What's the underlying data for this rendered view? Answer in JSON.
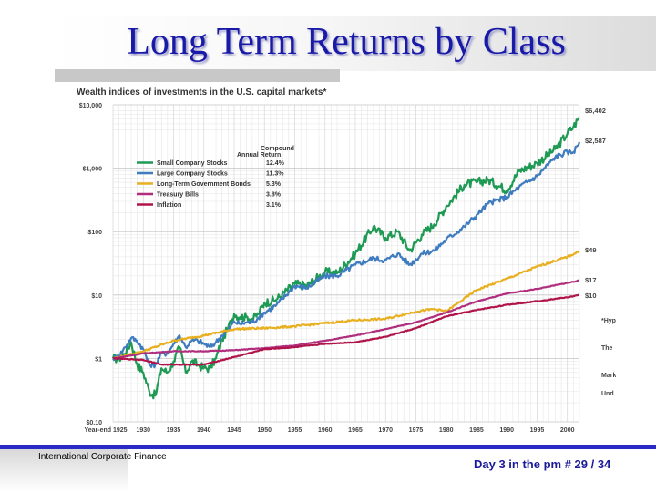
{
  "slide": {
    "title": "Long Term Returns by Class",
    "footer_left": "International Corporate Finance",
    "footer_right": "Day 3 in the pm # 29 / 34"
  },
  "chart_data": {
    "type": "line",
    "title": "Wealth indices of investments in the U.S. capital markets*",
    "y_scale": "log",
    "ylim": [
      0.1,
      10000
    ],
    "xlim": [
      1925,
      2002
    ],
    "y_ticks": [
      {
        "value": 10000,
        "label": "$10,000"
      },
      {
        "value": 1000,
        "label": "$1,000"
      },
      {
        "value": 100,
        "label": "$100"
      },
      {
        "value": 10,
        "label": "$10"
      },
      {
        "value": 1,
        "label": "$1"
      },
      {
        "value": 0.1,
        "label": "$0.10"
      }
    ],
    "x_ticks": [
      {
        "value": 1925,
        "label": "Year-end 1925"
      },
      {
        "value": 1930,
        "label": "1930"
      },
      {
        "value": 1935,
        "label": "1935"
      },
      {
        "value": 1940,
        "label": "1940"
      },
      {
        "value": 1945,
        "label": "1945"
      },
      {
        "value": 1950,
        "label": "1950"
      },
      {
        "value": 1955,
        "label": "1955"
      },
      {
        "value": 1960,
        "label": "1960"
      },
      {
        "value": 1965,
        "label": "1965"
      },
      {
        "value": 1970,
        "label": "1970"
      },
      {
        "value": 1975,
        "label": "1975"
      },
      {
        "value": 1980,
        "label": "1980"
      },
      {
        "value": 1985,
        "label": "1985"
      },
      {
        "value": 1990,
        "label": "1990"
      },
      {
        "value": 1995,
        "label": "1995"
      },
      {
        "value": 2000,
        "label": "2000"
      }
    ],
    "legend_header": [
      "Compound",
      "Annual Return"
    ],
    "grid": true,
    "legend_position": "top-left",
    "series": [
      {
        "name": "Small Company Stocks",
        "annual_return": "12.4%",
        "end_label": "$6,402",
        "color": "#1f9a55",
        "x": [
          1925,
          1926,
          1927,
          1928,
          1929,
          1930,
          1931,
          1932,
          1933,
          1934,
          1935,
          1936,
          1937,
          1938,
          1939,
          1940,
          1941,
          1942,
          1943,
          1944,
          1945,
          1946,
          1947,
          1948,
          1949,
          1950,
          1952,
          1955,
          1957,
          1960,
          1962,
          1965,
          1968,
          1970,
          1972,
          1974,
          1976,
          1978,
          1980,
          1983,
          1985,
          1987,
          1990,
          1992,
          1995,
          1998,
          2000,
          2001,
          2002
        ],
        "y": [
          1.0,
          1.0,
          1.2,
          1.8,
          0.8,
          0.6,
          0.3,
          0.26,
          0.7,
          0.6,
          0.9,
          1.5,
          0.6,
          0.9,
          0.8,
          0.7,
          0.7,
          1.0,
          2.0,
          3.0,
          5.0,
          4.5,
          4.5,
          4.2,
          5.0,
          7.5,
          8.5,
          15,
          14,
          23,
          22,
          45,
          120,
          80,
          100,
          50,
          90,
          130,
          250,
          550,
          600,
          650,
          450,
          900,
          1200,
          2000,
          3500,
          4500,
          6402
        ]
      },
      {
        "name": "Large Company Stocks",
        "annual_return": "11.3%",
        "end_label": "$2,587",
        "color": "#3e7bbf",
        "x": [
          1925,
          1926,
          1927,
          1928,
          1929,
          1930,
          1931,
          1932,
          1933,
          1934,
          1935,
          1936,
          1937,
          1938,
          1939,
          1940,
          1941,
          1942,
          1943,
          1944,
          1945,
          1946,
          1947,
          1948,
          1949,
          1950,
          1952,
          1954,
          1955,
          1957,
          1960,
          1962,
          1965,
          1968,
          1970,
          1972,
          1974,
          1976,
          1978,
          1980,
          1983,
          1985,
          1987,
          1990,
          1992,
          1995,
          1998,
          2000,
          2001,
          2002
        ],
        "y": [
          1.0,
          1.1,
          1.5,
          2.1,
          1.9,
          1.4,
          0.8,
          0.8,
          1.2,
          1.2,
          1.7,
          2.3,
          1.5,
          1.9,
          1.9,
          1.7,
          1.5,
          1.8,
          2.3,
          2.8,
          3.8,
          3.5,
          3.7,
          3.7,
          4.4,
          5.3,
          7.0,
          11,
          14,
          13,
          20,
          20,
          30,
          38,
          35,
          45,
          30,
          45,
          50,
          75,
          120,
          180,
          280,
          350,
          500,
          750,
          1500,
          1800,
          1800,
          2587
        ]
      },
      {
        "name": "Long-Term Government Bonds",
        "annual_return": "5.3%",
        "end_label": "$49",
        "color": "#e8b020",
        "x": [
          1925,
          1930,
          1935,
          1940,
          1945,
          1950,
          1955,
          1960,
          1965,
          1970,
          1975,
          1978,
          1980,
          1982,
          1985,
          1990,
          1995,
          2000,
          2002
        ],
        "y": [
          1.0,
          1.3,
          1.9,
          2.3,
          2.9,
          3.0,
          3.2,
          3.6,
          4.0,
          4.2,
          5.5,
          6.0,
          5.5,
          7.5,
          12,
          18,
          28,
          40,
          49
        ]
      },
      {
        "name": "Treasury Bills",
        "annual_return": "3.8%",
        "end_label": "$17",
        "color": "#b02e7e",
        "x": [
          1925,
          1930,
          1935,
          1940,
          1945,
          1950,
          1955,
          1960,
          1965,
          1970,
          1975,
          1980,
          1985,
          1990,
          1995,
          2000,
          2002
        ],
        "y": [
          1.0,
          1.2,
          1.3,
          1.3,
          1.35,
          1.45,
          1.6,
          1.9,
          2.3,
          2.9,
          3.7,
          5.3,
          7.9,
          10.5,
          12.5,
          15.5,
          17
        ]
      },
      {
        "name": "Inflation",
        "annual_return": "3.1%",
        "end_label": "$10",
        "color": "#b0144a",
        "x": [
          1925,
          1930,
          1933,
          1940,
          1945,
          1950,
          1955,
          1960,
          1965,
          1970,
          1975,
          1980,
          1985,
          1990,
          1995,
          2000,
          2002
        ],
        "y": [
          1.0,
          0.95,
          0.8,
          0.8,
          1.05,
          1.4,
          1.5,
          1.7,
          1.8,
          2.2,
          3.0,
          4.6,
          5.8,
          7.0,
          8.0,
          9.2,
          10
        ]
      }
    ],
    "notes": [
      "*Hyp",
      "The",
      "Mark",
      "Und"
    ]
  }
}
